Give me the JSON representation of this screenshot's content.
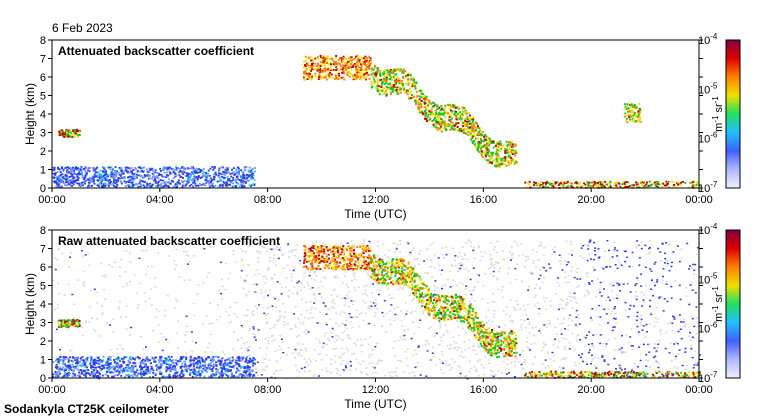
{
  "header": {
    "date": "6 Feb 2023"
  },
  "footer": {
    "instrument": "Sodankyla CT25K ceilometer"
  },
  "colors": {
    "background_noise": "#d9d9d9",
    "low": "#3040e0",
    "mid": "#20c020",
    "high": "#ff8000",
    "peak": "#c00000",
    "colorbar": [
      "#f0f0ff",
      "#b0b8ff",
      "#4060ff",
      "#20c0ff",
      "#20e060",
      "#f0e000",
      "#ff8000",
      "#e00000",
      "#800040"
    ]
  },
  "chart_data": [
    {
      "type": "heatmap",
      "title": "Attenuated backscatter coefficient",
      "xlabel": "Time (UTC)",
      "ylabel": "Height (km)",
      "x_ticks": [
        "00:00",
        "04:00",
        "08:00",
        "12:00",
        "16:00",
        "20:00",
        "00:00"
      ],
      "xlim_hours": [
        0,
        24
      ],
      "y_ticks": [
        "0",
        "1",
        "2",
        "3",
        "4",
        "5",
        "6",
        "7",
        "8"
      ],
      "ylim": [
        0,
        8
      ],
      "colorbar": {
        "label": "m-1 sr-1",
        "label_main": "m",
        "label_exp1": "-1",
        "label_sr": " sr",
        "label_exp2": "-1",
        "ticks": [
          {
            "base": "10",
            "exp": "-7",
            "v": -7
          },
          {
            "base": "10",
            "exp": "-6",
            "v": -6
          },
          {
            "base": "10",
            "exp": "-5",
            "v": -5
          },
          {
            "base": "10",
            "exp": "-4",
            "v": -4
          }
        ],
        "range_log10": [
          -7,
          -4
        ]
      },
      "features": [
        {
          "name": "high cloud deck",
          "t_start": 9.3,
          "t_end": 11.8,
          "h_low": 5.9,
          "h_high": 7.2,
          "level": "high"
        },
        {
          "name": "descending cloud",
          "t_start": 11.8,
          "t_end": 17.2,
          "h_from": 6.5,
          "h_to": 1.5,
          "level": "mid"
        },
        {
          "name": "boundary layer",
          "t_start": 0,
          "t_end": 7.5,
          "h_low": 0.1,
          "h_high": 1.2,
          "level": "low"
        },
        {
          "name": "low cloud",
          "t_start": 17.5,
          "t_end": 24,
          "h_low": 0.05,
          "h_high": 0.4,
          "level": "peak"
        },
        {
          "name": "early cloud",
          "t_start": 0.2,
          "t_end": 1.0,
          "h_low": 2.8,
          "h_high": 3.2,
          "level": "peak"
        },
        {
          "name": "cloud patch",
          "t_start": 21.2,
          "t_end": 21.8,
          "h_low": 3.6,
          "h_high": 4.6,
          "level": "mid"
        }
      ]
    },
    {
      "type": "heatmap",
      "title": "Raw attenuated backscatter coefficient",
      "xlabel": "Time (UTC)",
      "ylabel": "Height (km)",
      "x_ticks": [
        "00:00",
        "04:00",
        "08:00",
        "12:00",
        "16:00",
        "20:00",
        "00:00"
      ],
      "xlim_hours": [
        0,
        24
      ],
      "y_ticks": [
        "0",
        "1",
        "2",
        "3",
        "4",
        "5",
        "6",
        "7",
        "8"
      ],
      "ylim": [
        0,
        8
      ],
      "colorbar": {
        "label": "m-1 sr-1",
        "label_main": "m",
        "label_exp1": "-1",
        "label_sr": " sr",
        "label_exp2": "-1",
        "ticks": [
          {
            "base": "10",
            "exp": "-7",
            "v": -7
          },
          {
            "base": "10",
            "exp": "-6",
            "v": -6
          },
          {
            "base": "10",
            "exp": "-5",
            "v": -5
          },
          {
            "base": "10",
            "exp": "-4",
            "v": -4
          }
        ],
        "range_log10": [
          -7,
          -4
        ]
      },
      "features": [
        {
          "name": "noise field",
          "t_start": 0,
          "t_end": 24,
          "h_low": 0,
          "h_high": 7.5,
          "level": "noise"
        },
        {
          "name": "high cloud deck",
          "t_start": 9.3,
          "t_end": 11.8,
          "h_low": 5.9,
          "h_high": 7.2,
          "level": "high"
        },
        {
          "name": "descending cloud",
          "t_start": 11.8,
          "t_end": 17.2,
          "h_from": 6.5,
          "h_to": 1.5,
          "level": "mid"
        },
        {
          "name": "boundary layer",
          "t_start": 0,
          "t_end": 7.5,
          "h_low": 0.1,
          "h_high": 1.2,
          "level": "low"
        },
        {
          "name": "low cloud",
          "t_start": 17.5,
          "t_end": 24,
          "h_low": 0.05,
          "h_high": 0.4,
          "level": "peak"
        },
        {
          "name": "early cloud",
          "t_start": 0.2,
          "t_end": 1.0,
          "h_low": 2.8,
          "h_high": 3.2,
          "level": "peak"
        }
      ]
    }
  ]
}
